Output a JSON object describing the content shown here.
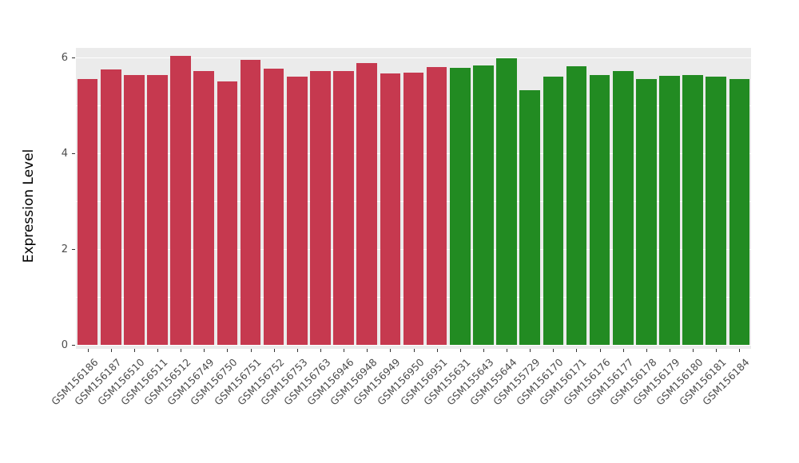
{
  "chart_data": {
    "type": "bar",
    "title": "",
    "xlabel": "",
    "ylabel": "Expression Level",
    "ylim": [
      0,
      6.2
    ],
    "yticks": [
      0,
      2,
      4,
      6
    ],
    "yticks_minor": [
      1,
      3,
      5
    ],
    "grid": "on",
    "legend": "none",
    "panel_background": "#EBEBEB",
    "grid_color": "#FFFFFF",
    "categories": [
      "GSM156186",
      "GSM156187",
      "GSM156510",
      "GSM156511",
      "GSM156512",
      "GSM156749",
      "GSM156750",
      "GSM156751",
      "GSM156752",
      "GSM156753",
      "GSM156763",
      "GSM156946",
      "GSM156948",
      "GSM156949",
      "GSM156950",
      "GSM156951",
      "GSM155631",
      "GSM155643",
      "GSM155644",
      "GSM155729",
      "GSM156170",
      "GSM156171",
      "GSM156176",
      "GSM156177",
      "GSM156178",
      "GSM156179",
      "GSM156180",
      "GSM156181",
      "GSM156184"
    ],
    "values": [
      5.55,
      5.75,
      5.63,
      5.63,
      6.03,
      5.72,
      5.5,
      5.95,
      5.76,
      5.6,
      5.72,
      5.72,
      5.88,
      5.67,
      5.69,
      5.8,
      5.78,
      5.83,
      5.98,
      5.32,
      5.6,
      5.81,
      5.64,
      5.72,
      5.55,
      5.62,
      5.63,
      5.6,
      5.55
    ],
    "group": [
      "red",
      "red",
      "red",
      "red",
      "red",
      "red",
      "red",
      "red",
      "red",
      "red",
      "red",
      "red",
      "red",
      "red",
      "red",
      "red",
      "green",
      "green",
      "green",
      "green",
      "green",
      "green",
      "green",
      "green",
      "green",
      "green",
      "green",
      "green",
      "green"
    ],
    "palette": {
      "red": "#C6394F",
      "green": "#228B22"
    }
  }
}
